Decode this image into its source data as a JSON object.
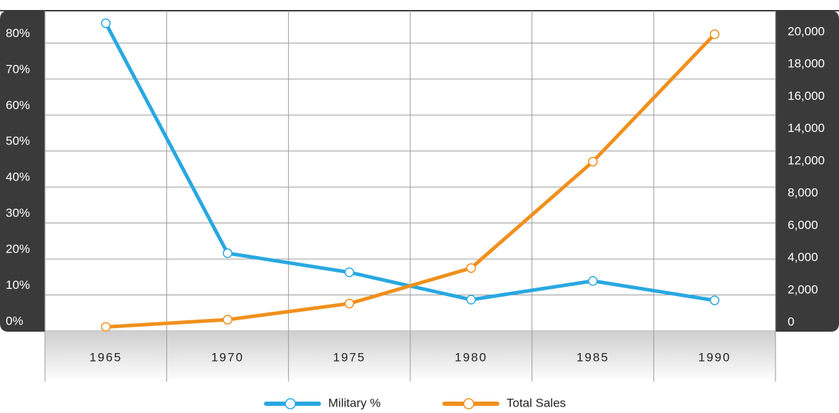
{
  "chart_data": {
    "type": "line",
    "categories": [
      "1965",
      "1970",
      "1975",
      "1980",
      "1985",
      "1990"
    ],
    "series": [
      {
        "name": "Military %",
        "color": "#29a8e0",
        "values": [
          85.5,
          21.6,
          16.3,
          8.7,
          13.9,
          8.5
        ]
      },
      {
        "name": "Total Sales",
        "color": "#f0901e",
        "axis": "y2",
        "values": [
          250,
          700,
          1700,
          3900,
          12500,
          20400
        ]
      }
    ],
    "ylim": [
      0,
      89
    ],
    "yticks": [
      {
        "value": 0,
        "label": "0%"
      },
      {
        "value": 10,
        "label": "10%"
      },
      {
        "value": 20,
        "label": "20%"
      },
      {
        "value": 30,
        "label": "30%"
      },
      {
        "value": 40,
        "label": "40%"
      },
      {
        "value": 50,
        "label": "50%"
      },
      {
        "value": 60,
        "label": "60%"
      },
      {
        "value": 70,
        "label": "70%"
      },
      {
        "value": 80,
        "label": "80%"
      }
    ],
    "y2ticks": [
      0,
      {
        "value": 2000,
        "label": "2,000"
      },
      {
        "value": 4000,
        "label": "4,000"
      },
      {
        "value": 6000,
        "label": "6,000"
      },
      {
        "value": 8000,
        "label": "8,000"
      },
      {
        "value": 12000,
        "label": "12,000"
      },
      {
        "value": 14000,
        "label": "14,000"
      },
      {
        "value": 16000,
        "label": "16,000"
      },
      {
        "value": 18000,
        "label": "18,000"
      },
      {
        "value": 20000,
        "label": "20,000"
      }
    ],
    "grid": true
  }
}
